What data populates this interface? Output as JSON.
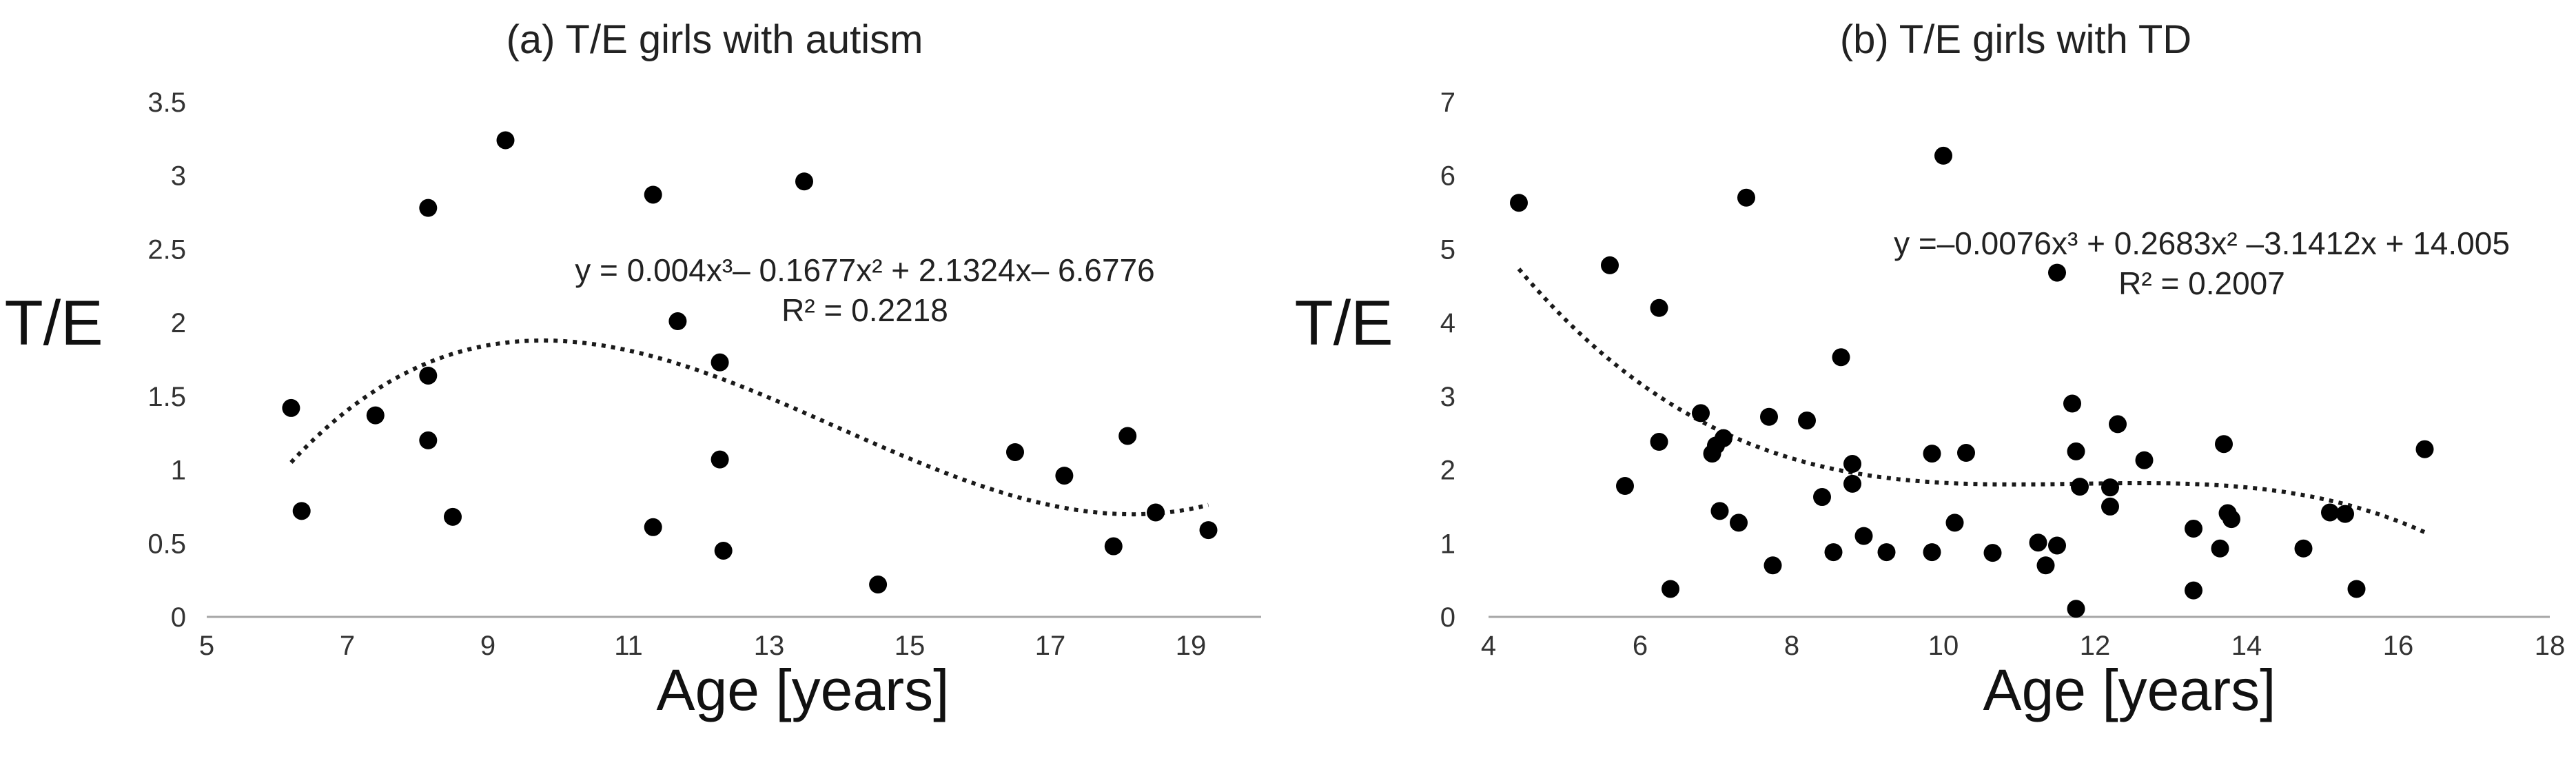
{
  "chart_data": [
    {
      "type": "scatter",
      "title": "(a) T/E girls with autism",
      "xlabel": "Age [years]",
      "ylabel": "T/E",
      "xlim": [
        5,
        20
      ],
      "ylim": [
        0,
        3.5
      ],
      "xticks": [
        5,
        7,
        9,
        11,
        13,
        15,
        17,
        19
      ],
      "xtick_labels": [
        "5",
        "7",
        "9",
        "11",
        "13",
        "15",
        "17",
        "19"
      ],
      "yticks": [
        0,
        0.5,
        1,
        1.5,
        2,
        2.5,
        3,
        3.5
      ],
      "ytick_labels": [
        "0",
        "0.5",
        "1",
        "1.5",
        "2",
        "2.5",
        "3",
        "3.5"
      ],
      "grid": false,
      "points": [
        {
          "x": 6.2,
          "y": 1.42
        },
        {
          "x": 6.35,
          "y": 0.72
        },
        {
          "x": 7.4,
          "y": 1.37
        },
        {
          "x": 8.15,
          "y": 2.78
        },
        {
          "x": 8.15,
          "y": 1.64
        },
        {
          "x": 8.15,
          "y": 1.2
        },
        {
          "x": 8.5,
          "y": 0.68
        },
        {
          "x": 9.25,
          "y": 3.24
        },
        {
          "x": 11.35,
          "y": 2.87
        },
        {
          "x": 11.35,
          "y": 0.61
        },
        {
          "x": 11.7,
          "y": 2.01
        },
        {
          "x": 12.3,
          "y": 1.73
        },
        {
          "x": 12.3,
          "y": 1.07
        },
        {
          "x": 12.35,
          "y": 0.45
        },
        {
          "x": 13.5,
          "y": 2.96
        },
        {
          "x": 14.55,
          "y": 0.22
        },
        {
          "x": 16.5,
          "y": 1.12
        },
        {
          "x": 17.2,
          "y": 0.96
        },
        {
          "x": 17.9,
          "y": 0.48
        },
        {
          "x": 18.1,
          "y": 1.23
        },
        {
          "x": 18.5,
          "y": 0.71
        },
        {
          "x": 19.25,
          "y": 0.59
        }
      ],
      "trendline": {
        "type": "polynomial",
        "coefficients": [
          0.004,
          -0.1677,
          2.1324,
          -6.6776
        ],
        "x_range": [
          6.2,
          19.25
        ],
        "equation": "y = 0.004x³– 0.1677x² + 2.1324x– 6.6776",
        "r_squared": "R² = 0.2218"
      }
    },
    {
      "type": "scatter",
      "title": "(b) T/E girls with TD",
      "xlabel": "Age [years]",
      "ylabel": "T/E",
      "xlim": [
        4,
        18
      ],
      "ylim": [
        0,
        7
      ],
      "xticks": [
        4,
        6,
        8,
        10,
        12,
        14,
        16,
        18
      ],
      "xtick_labels": [
        "4",
        "6",
        "8",
        "10",
        "12",
        "14",
        "16",
        "18"
      ],
      "yticks": [
        0,
        1,
        2,
        3,
        4,
        5,
        6,
        7
      ],
      "ytick_labels": [
        "0",
        "1",
        "2",
        "3",
        "4",
        "5",
        "6",
        "7"
      ],
      "grid": false,
      "points": [
        {
          "x": 4.4,
          "y": 5.63
        },
        {
          "x": 5.6,
          "y": 4.78
        },
        {
          "x": 5.8,
          "y": 1.78
        },
        {
          "x": 6.25,
          "y": 4.2
        },
        {
          "x": 6.25,
          "y": 2.38
        },
        {
          "x": 6.4,
          "y": 0.38
        },
        {
          "x": 6.8,
          "y": 2.77
        },
        {
          "x": 6.95,
          "y": 2.22
        },
        {
          "x": 7.0,
          "y": 2.33
        },
        {
          "x": 7.05,
          "y": 1.44
        },
        {
          "x": 7.1,
          "y": 2.43
        },
        {
          "x": 7.3,
          "y": 1.28
        },
        {
          "x": 7.4,
          "y": 5.7
        },
        {
          "x": 7.7,
          "y": 2.72
        },
        {
          "x": 7.75,
          "y": 0.7
        },
        {
          "x": 8.2,
          "y": 2.67
        },
        {
          "x": 8.4,
          "y": 1.63
        },
        {
          "x": 8.55,
          "y": 0.88
        },
        {
          "x": 8.65,
          "y": 3.53
        },
        {
          "x": 8.8,
          "y": 2.08
        },
        {
          "x": 8.8,
          "y": 1.81
        },
        {
          "x": 8.95,
          "y": 1.1
        },
        {
          "x": 9.25,
          "y": 0.88
        },
        {
          "x": 9.85,
          "y": 2.22
        },
        {
          "x": 9.85,
          "y": 0.88
        },
        {
          "x": 10.0,
          "y": 6.27
        },
        {
          "x": 10.15,
          "y": 1.28
        },
        {
          "x": 10.3,
          "y": 2.23
        },
        {
          "x": 10.65,
          "y": 0.87
        },
        {
          "x": 11.25,
          "y": 1.01
        },
        {
          "x": 11.35,
          "y": 0.7
        },
        {
          "x": 11.5,
          "y": 4.68
        },
        {
          "x": 11.5,
          "y": 0.97
        },
        {
          "x": 11.7,
          "y": 2.9
        },
        {
          "x": 11.75,
          "y": 2.25
        },
        {
          "x": 11.8,
          "y": 1.77
        },
        {
          "x": 11.75,
          "y": 0.11
        },
        {
          "x": 12.2,
          "y": 1.76
        },
        {
          "x": 12.2,
          "y": 1.5
        },
        {
          "x": 12.3,
          "y": 2.62
        },
        {
          "x": 12.65,
          "y": 2.13
        },
        {
          "x": 13.3,
          "y": 1.2
        },
        {
          "x": 13.3,
          "y": 0.36
        },
        {
          "x": 13.65,
          "y": 0.93
        },
        {
          "x": 13.7,
          "y": 2.35
        },
        {
          "x": 13.75,
          "y": 1.41
        },
        {
          "x": 13.8,
          "y": 1.33
        },
        {
          "x": 14.75,
          "y": 0.93
        },
        {
          "x": 15.1,
          "y": 1.42
        },
        {
          "x": 15.3,
          "y": 1.4
        },
        {
          "x": 15.45,
          "y": 0.38
        },
        {
          "x": 16.35,
          "y": 2.28
        }
      ],
      "trendline": {
        "type": "polynomial",
        "coefficients": [
          -0.0076,
          0.2683,
          -3.1412,
          14.005
        ],
        "x_range": [
          4.4,
          16.35
        ],
        "equation": "y =–0.0076x³ + 0.2683x² –3.1412x + 14.005",
        "r_squared": "R² = 0.2007"
      }
    }
  ]
}
